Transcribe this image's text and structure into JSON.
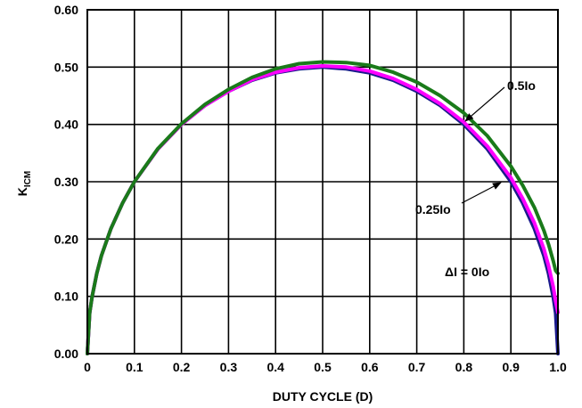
{
  "chart_data": {
    "type": "line",
    "title": "",
    "xlabel": "DUTY CYCLE (D)",
    "ylabel": {
      "main": "K",
      "sub": "ICM"
    },
    "xlim": [
      0,
      1.0
    ],
    "ylim": [
      0,
      0.6
    ],
    "xticks": [
      "0",
      "0.1",
      "0.2",
      "0.3",
      "0.4",
      "0.5",
      "0.6",
      "0.7",
      "0.8",
      "0.9",
      "1.0"
    ],
    "yticks": [
      "0.00",
      "0.10",
      "0.20",
      "0.30",
      "0.40",
      "0.50",
      "0.60"
    ],
    "grid": true,
    "x": [
      0,
      0.005,
      0.01,
      0.02,
      0.03,
      0.05,
      0.075,
      0.1,
      0.15,
      0.2,
      0.25,
      0.3,
      0.35,
      0.4,
      0.45,
      0.5,
      0.55,
      0.6,
      0.65,
      0.7,
      0.75,
      0.8,
      0.85,
      0.9,
      0.925,
      0.95,
      0.97,
      0.98,
      0.99,
      0.995,
      1.0
    ],
    "series": [
      {
        "name": "ΔI = 0Io",
        "color": "#1a1a8c",
        "values": [
          0,
          0.071,
          0.099,
          0.14,
          0.171,
          0.218,
          0.263,
          0.3,
          0.357,
          0.4,
          0.433,
          0.458,
          0.477,
          0.49,
          0.497,
          0.5,
          0.497,
          0.49,
          0.477,
          0.458,
          0.433,
          0.4,
          0.357,
          0.3,
          0.263,
          0.218,
          0.171,
          0.14,
          0.099,
          0.071,
          0
        ]
      },
      {
        "name": "0.25Io",
        "color": "#ff00ff",
        "values": [
          0,
          0.071,
          0.099,
          0.14,
          0.171,
          0.218,
          0.263,
          0.3,
          0.357,
          0.4,
          0.433,
          0.458,
          0.478,
          0.491,
          0.499,
          0.502,
          0.5,
          0.493,
          0.48,
          0.461,
          0.436,
          0.404,
          0.362,
          0.307,
          0.271,
          0.228,
          0.183,
          0.154,
          0.117,
          0.092,
          0.072
        ]
      },
      {
        "name": "0.5Io",
        "color": "#1a7a1a",
        "values": [
          0,
          0.071,
          0.099,
          0.14,
          0.171,
          0.218,
          0.263,
          0.3,
          0.358,
          0.401,
          0.435,
          0.461,
          0.482,
          0.497,
          0.506,
          0.509,
          0.508,
          0.503,
          0.491,
          0.474,
          0.45,
          0.42,
          0.38,
          0.327,
          0.294,
          0.255,
          0.215,
          0.191,
          0.162,
          0.145,
          0.14
        ]
      }
    ],
    "annotations": [
      {
        "text": "0.5Io",
        "target": "0.5Io",
        "at_x": 0.81,
        "at_y": 0.41
      },
      {
        "text": "0.25Io",
        "target": "0.25Io",
        "at_x": 0.9,
        "at_y": 0.31
      },
      {
        "text": "ΔI = 0Io",
        "target": "ΔI = 0Io"
      }
    ]
  }
}
